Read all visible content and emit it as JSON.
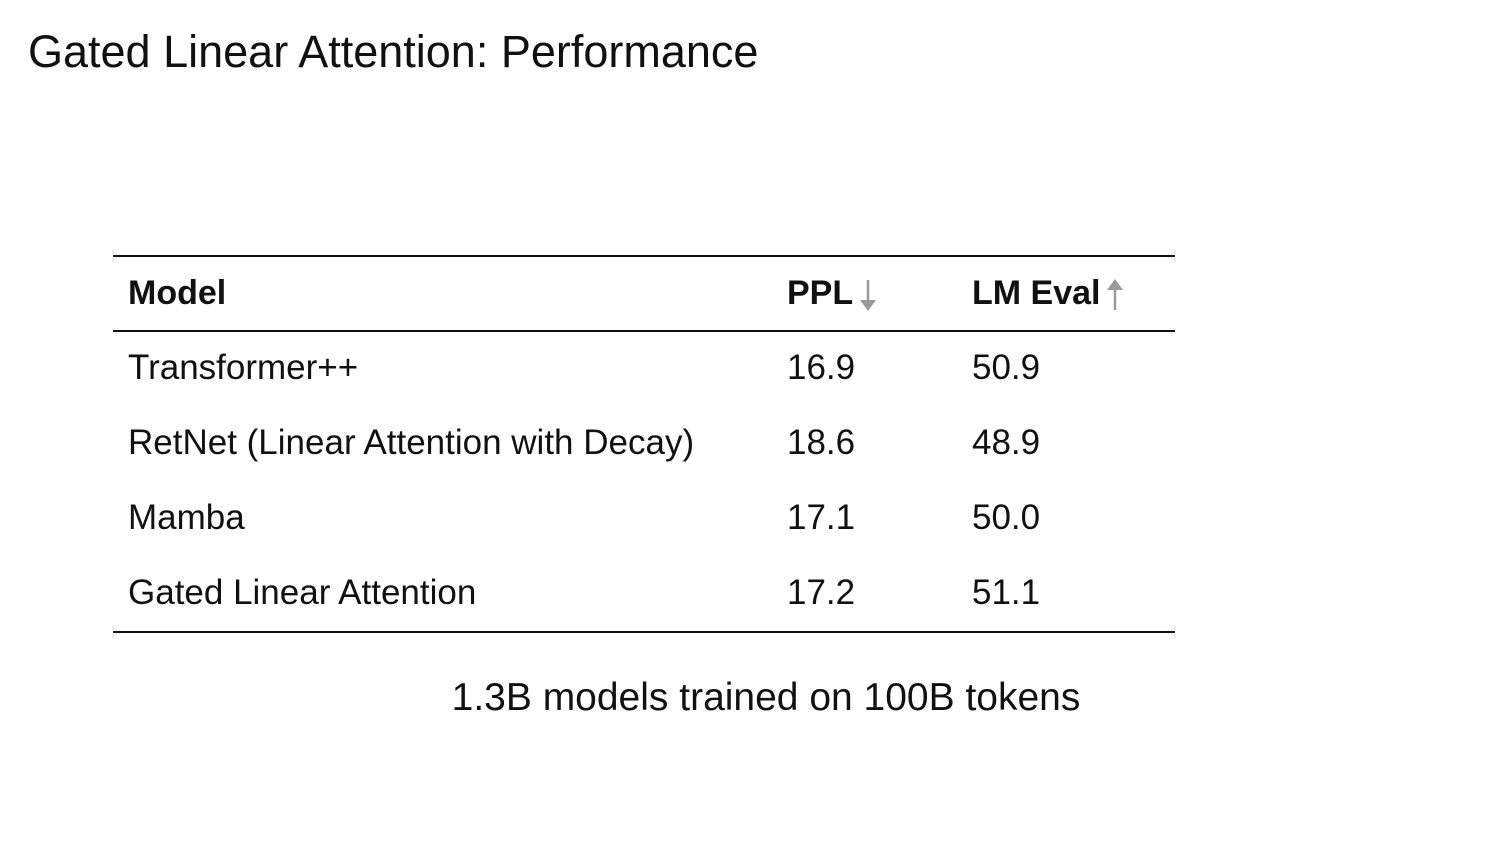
{
  "title": "Gated Linear Attention: Performance",
  "table": {
    "header": [
      "Model",
      "PPL",
      "LM Eval"
    ],
    "rows": [
      [
        "Transformer++",
        "16.9",
        "50.9"
      ],
      [
        "RetNet (Linear Attention with Decay)",
        "18.6",
        "48.9"
      ],
      [
        "Mamba",
        "17.1",
        "50.0"
      ],
      [
        "Gated Linear Attention",
        "17.2",
        "51.1"
      ]
    ]
  },
  "caption": "1.3B models trained on 100B tokens"
}
